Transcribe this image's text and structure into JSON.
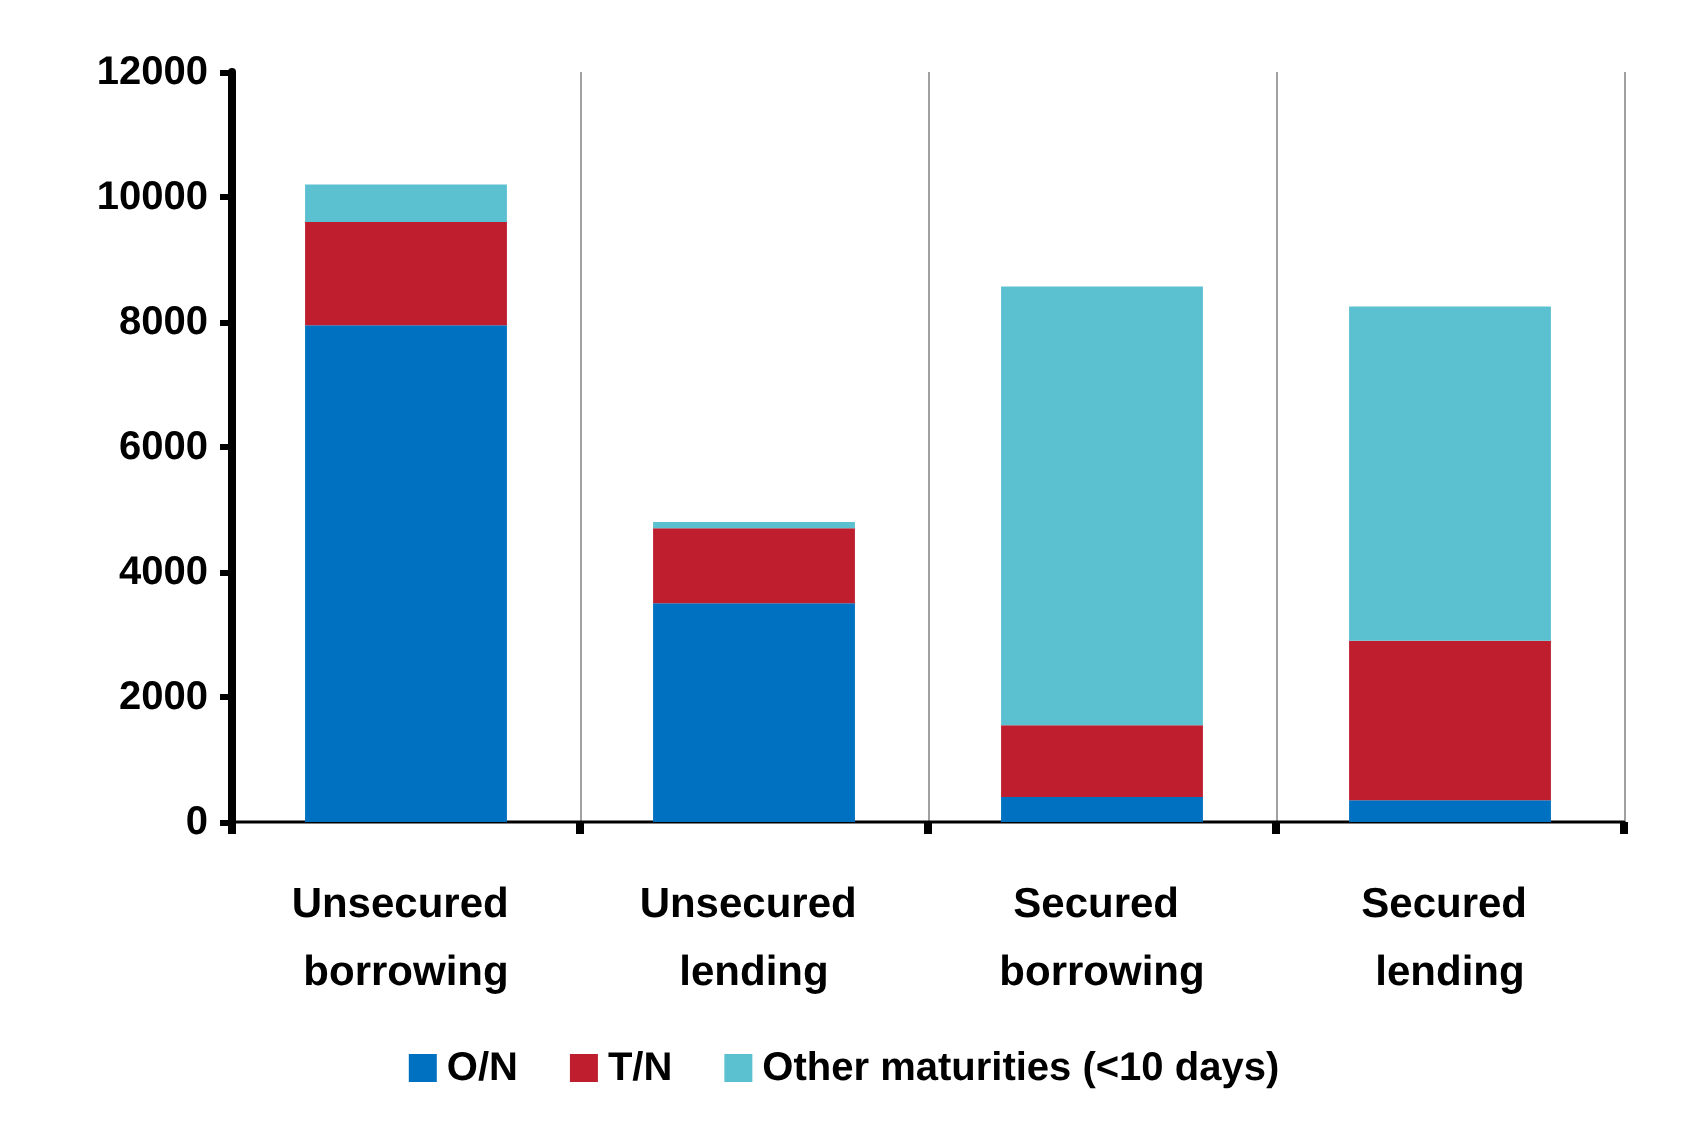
{
  "chart_data": {
    "type": "bar",
    "stacked": true,
    "categories": [
      "Unsecured borrowing",
      "Unsecured lending",
      "Secured borrowing",
      "Secured lending"
    ],
    "series": [
      {
        "name": "O/N",
        "color": "#0070c0",
        "values": [
          7950,
          3500,
          400,
          350
        ]
      },
      {
        "name": "T/N",
        "color": "#be1e2d",
        "values": [
          1650,
          1200,
          1150,
          2550
        ]
      },
      {
        "name": "Other maturities (<10 days)",
        "color": "#5bc0d0",
        "values": [
          600,
          100,
          7020,
          5350
        ]
      }
    ],
    "ylim": [
      0,
      12000
    ],
    "yticks": [
      0,
      2000,
      4000,
      6000,
      8000,
      10000,
      12000
    ],
    "grid": "x",
    "legend": "bottom"
  }
}
